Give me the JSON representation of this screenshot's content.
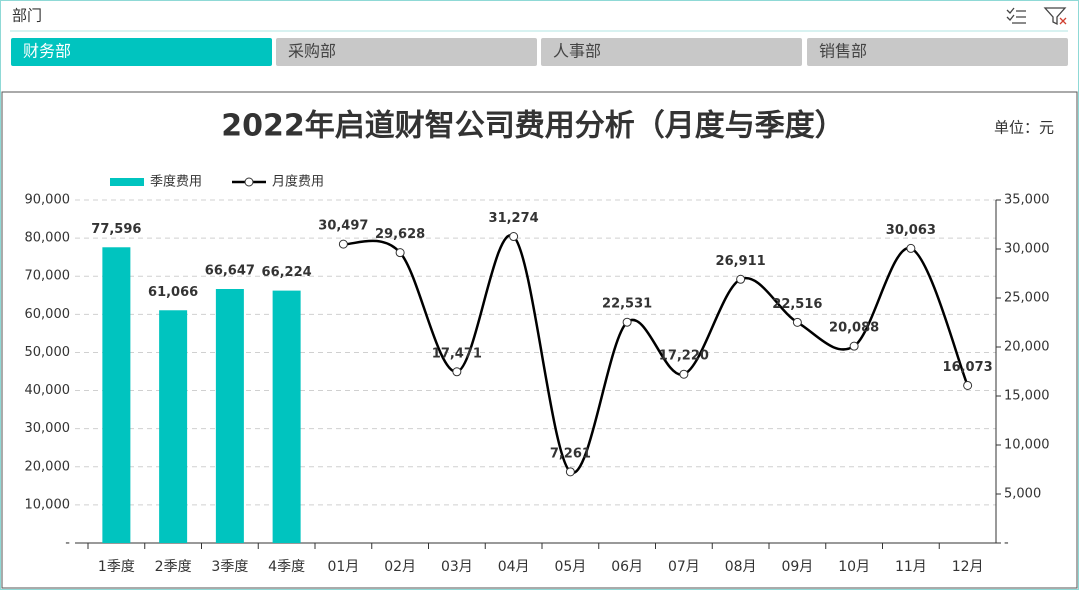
{
  "slicer": {
    "title": "部门",
    "items": [
      "财务部",
      "采购部",
      "人事部",
      "销售部"
    ],
    "selected": 0
  },
  "chart_data": {
    "type": "combo",
    "title": "2022年启道财智公司费用分析（月度与季度）",
    "unit": "单位：元",
    "categories": [
      "1季度",
      "2季度",
      "3季度",
      "4季度",
      "01月",
      "02月",
      "03月",
      "04月",
      "05月",
      "06月",
      "07月",
      "08月",
      "09月",
      "10月",
      "11月",
      "12月"
    ],
    "series": [
      {
        "name": "季度费用",
        "type": "bar",
        "color": "#00c4bf",
        "values": [
          77596,
          61066,
          66647,
          66224,
          null,
          null,
          null,
          null,
          null,
          null,
          null,
          null,
          null,
          null,
          null,
          null
        ],
        "value_labels": [
          "77,596",
          "61,066",
          "66,647",
          "66,224",
          null,
          null,
          null,
          null,
          null,
          null,
          null,
          null,
          null,
          null,
          null,
          null
        ]
      },
      {
        "name": "月度费用",
        "type": "line",
        "axis": "y2",
        "color": "#000000",
        "values": [
          null,
          null,
          null,
          null,
          30497,
          29628,
          17471,
          31274,
          7261,
          22531,
          17220,
          26911,
          22516,
          20088,
          30063,
          16073
        ],
        "value_labels": [
          null,
          null,
          null,
          null,
          "30,497",
          "29,628",
          "17,471",
          "31,274",
          "7,261",
          "22,531",
          "17,220",
          "26,911",
          "22,516",
          "20,088",
          "30,063",
          "16,073"
        ]
      }
    ],
    "ylim": [
      0,
      90000
    ],
    "yticks": [
      {
        "value": 0,
        "label": "-"
      },
      {
        "value": 10000,
        "label": "10,000"
      },
      {
        "value": 20000,
        "label": "20,000"
      },
      {
        "value": 30000,
        "label": "30,000"
      },
      {
        "value": 40000,
        "label": "40,000"
      },
      {
        "value": 50000,
        "label": "50,000"
      },
      {
        "value": 60000,
        "label": "60,000"
      },
      {
        "value": 70000,
        "label": "70,000"
      },
      {
        "value": 80000,
        "label": "80,000"
      },
      {
        "value": 90000,
        "label": "90,000"
      }
    ],
    "y2lim": [
      0,
      35000
    ],
    "y2ticks": [
      {
        "value": 0,
        "label": "-"
      },
      {
        "value": 5000,
        "label": "5,000"
      },
      {
        "value": 10000,
        "label": "10,000"
      },
      {
        "value": 15000,
        "label": "15,000"
      },
      {
        "value": 20000,
        "label": "20,000"
      },
      {
        "value": 25000,
        "label": "25,000"
      },
      {
        "value": 30000,
        "label": "30,000"
      },
      {
        "value": 35000,
        "label": "35,000"
      }
    ],
    "grid": true,
    "legend": "top-left"
  }
}
